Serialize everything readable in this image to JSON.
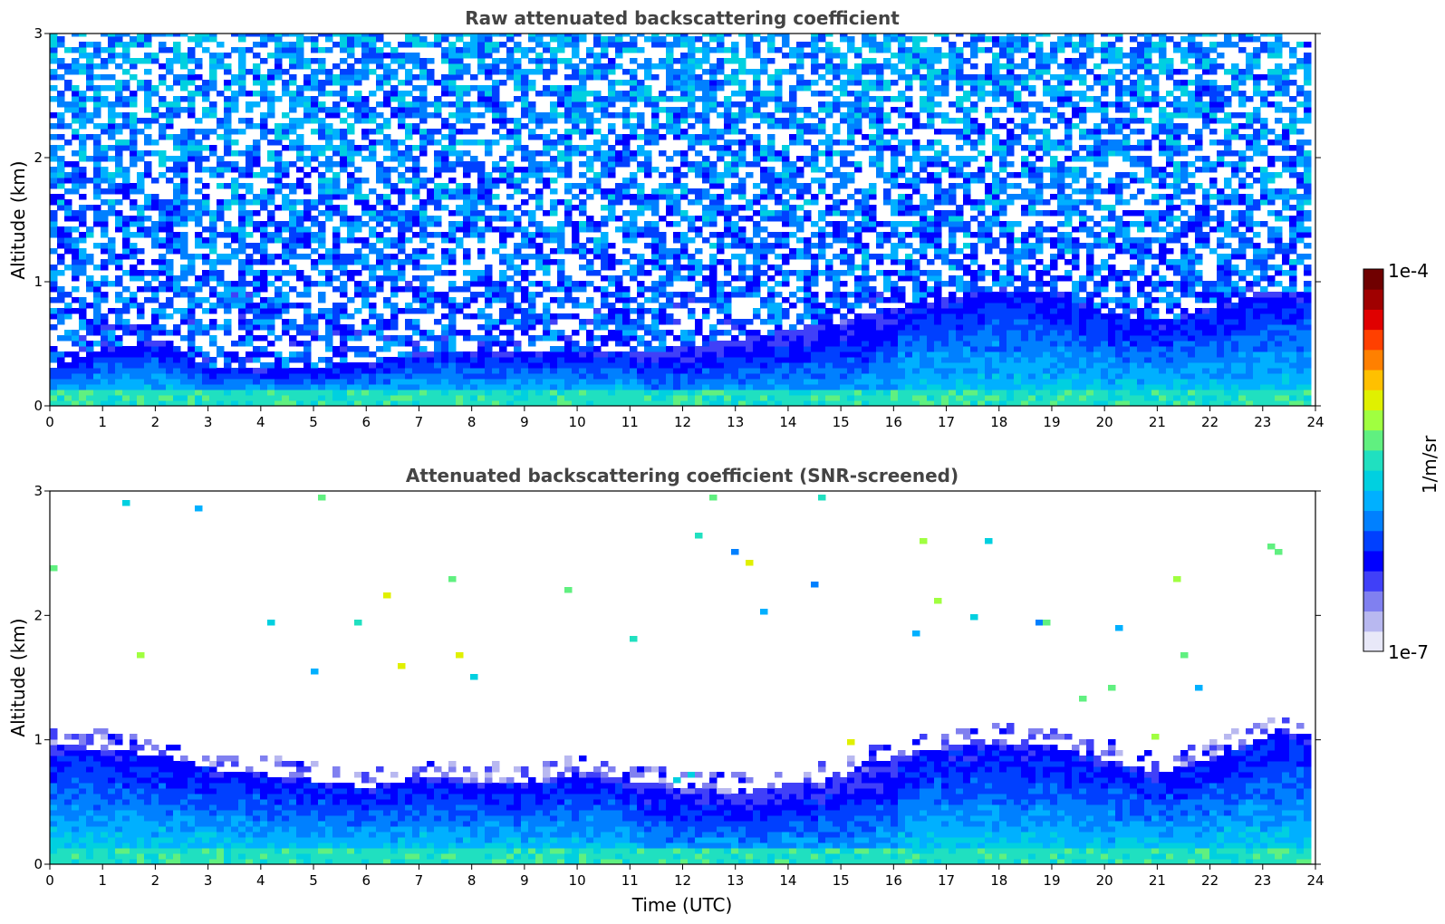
{
  "chart_data": [
    {
      "type": "heatmap",
      "title": "Raw attenuated backscattering coefficient",
      "xlabel": "",
      "ylabel": "Altitude (km)",
      "xlim": [
        0,
        24
      ],
      "ylim": [
        0,
        3
      ],
      "xticks": [
        "0",
        "1",
        "2",
        "3",
        "4",
        "5",
        "6",
        "7",
        "8",
        "9",
        "10",
        "11",
        "12",
        "13",
        "14",
        "15",
        "16",
        "17",
        "18",
        "19",
        "20",
        "21",
        "22",
        "23",
        "24"
      ],
      "yticks": [
        "0",
        "1",
        "2",
        "3"
      ],
      "data_time_end": 23.8,
      "layer_top_km": {
        "x": [
          0,
          1,
          2,
          3,
          4,
          5,
          6,
          7,
          8,
          9,
          10,
          11,
          12,
          13,
          14,
          15,
          16,
          17,
          18,
          19,
          20,
          21,
          22,
          23,
          23.8
        ],
        "y": [
          0.3,
          0.45,
          0.5,
          0.3,
          0.28,
          0.3,
          0.32,
          0.42,
          0.42,
          0.4,
          0.4,
          0.42,
          0.45,
          0.52,
          0.6,
          0.66,
          0.78,
          0.86,
          0.92,
          0.9,
          0.72,
          0.66,
          0.78,
          0.9,
          0.92
        ]
      },
      "noise": "high"
    },
    {
      "type": "heatmap",
      "title": "Attenuated backscattering coefficient (SNR-screened)",
      "xlabel": "Time (UTC)",
      "ylabel": "Altitude (km)",
      "xlim": [
        0,
        24
      ],
      "ylim": [
        0,
        3
      ],
      "xticks": [
        "0",
        "1",
        "2",
        "3",
        "4",
        "5",
        "6",
        "7",
        "8",
        "9",
        "10",
        "11",
        "12",
        "13",
        "14",
        "15",
        "16",
        "17",
        "18",
        "19",
        "20",
        "21",
        "22",
        "23",
        "24"
      ],
      "yticks": [
        "0",
        "1",
        "2",
        "3"
      ],
      "data_time_end": 23.8,
      "layer_top_km": {
        "x": [
          0,
          1,
          2,
          3,
          4,
          5,
          6,
          7,
          8,
          9,
          10,
          11,
          12,
          13,
          14,
          15,
          16,
          17,
          18,
          19,
          20,
          21,
          22,
          23,
          23.8
        ],
        "y": [
          0.95,
          0.9,
          0.85,
          0.75,
          0.7,
          0.65,
          0.6,
          0.68,
          0.65,
          0.62,
          0.7,
          0.65,
          0.6,
          0.55,
          0.62,
          0.68,
          0.85,
          0.92,
          0.95,
          0.92,
          0.82,
          0.7,
          0.85,
          1.0,
          1.05
        ]
      },
      "noise": "low"
    }
  ],
  "colorbar": {
    "min_label": "1e-7",
    "max_label": "1e-4",
    "unit_label": "1/m/sr",
    "scale": "log",
    "colors": [
      "#e8e8f8",
      "#b8b8f0",
      "#8080f0",
      "#4040f8",
      "#0000ff",
      "#0040ff",
      "#0080ff",
      "#00b0ff",
      "#00d0e0",
      "#20e0c0",
      "#60f080",
      "#a0ff40",
      "#e0f000",
      "#ffc000",
      "#ff8000",
      "#ff4000",
      "#e00000",
      "#a00000",
      "#700000"
    ]
  }
}
